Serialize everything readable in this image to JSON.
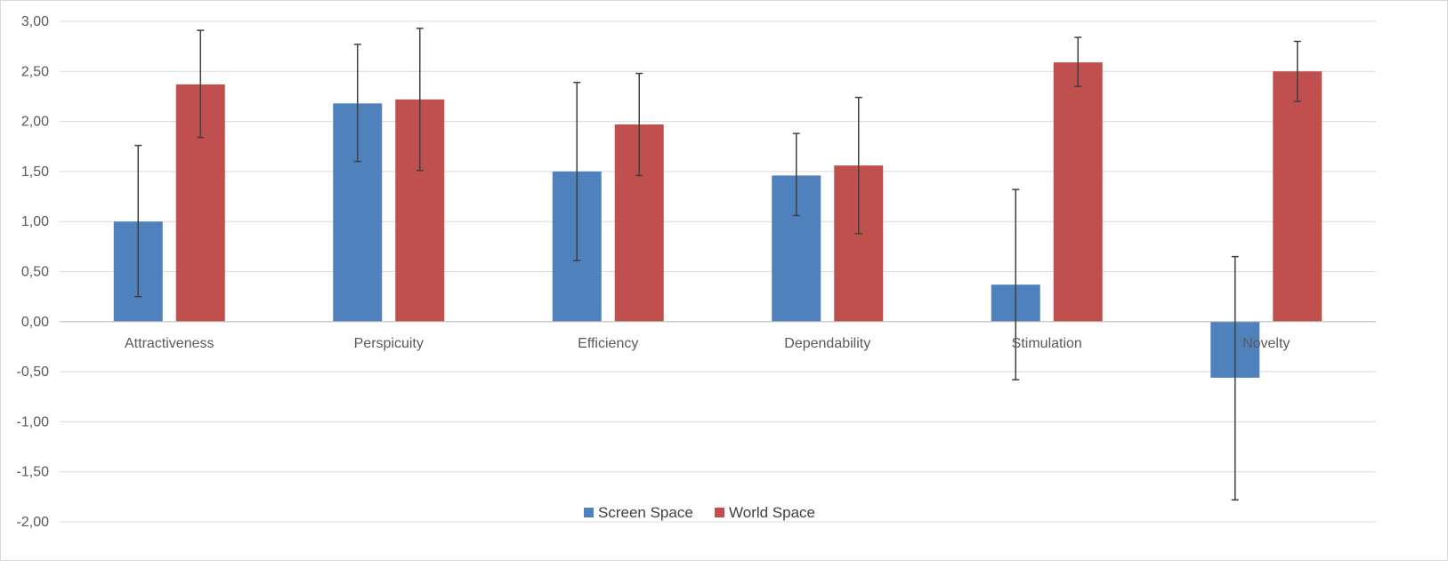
{
  "chart_data": {
    "type": "bar",
    "categories": [
      "Attractiveness",
      "Perspicuity",
      "Efficiency",
      "Dependability",
      "Stimulation",
      "Novelty"
    ],
    "series": [
      {
        "name": "Screen Space",
        "color": "#4f81bd",
        "values": [
          1.0,
          2.18,
          1.5,
          1.46,
          0.37,
          -0.56
        ],
        "error_low": [
          0.25,
          1.6,
          0.61,
          1.06,
          -0.58,
          -1.78
        ],
        "error_high": [
          1.76,
          2.77,
          2.39,
          1.88,
          1.32,
          0.65
        ]
      },
      {
        "name": "World Space",
        "color": "#c0504d",
        "values": [
          2.37,
          2.22,
          1.97,
          1.56,
          2.59,
          2.5
        ],
        "error_low": [
          1.84,
          1.51,
          1.46,
          0.88,
          2.35,
          2.2
        ],
        "error_high": [
          2.91,
          2.93,
          2.48,
          2.24,
          2.84,
          2.8
        ]
      }
    ],
    "ylim": [
      -2.0,
      3.0
    ],
    "yticks": [
      3.0,
      2.5,
      2.0,
      1.5,
      1.0,
      0.5,
      0.0,
      -0.5,
      -1.0,
      -1.5,
      -2.0
    ],
    "ytick_labels": [
      "3,00",
      "2,50",
      "2,00",
      "1,50",
      "1,00",
      "0,50",
      "0,00",
      "-0,50",
      "-1,00",
      "-1,50",
      "-2,00"
    ],
    "grid": true,
    "legend_position": "bottom",
    "title": "",
    "xlabel": "",
    "ylabel": ""
  }
}
